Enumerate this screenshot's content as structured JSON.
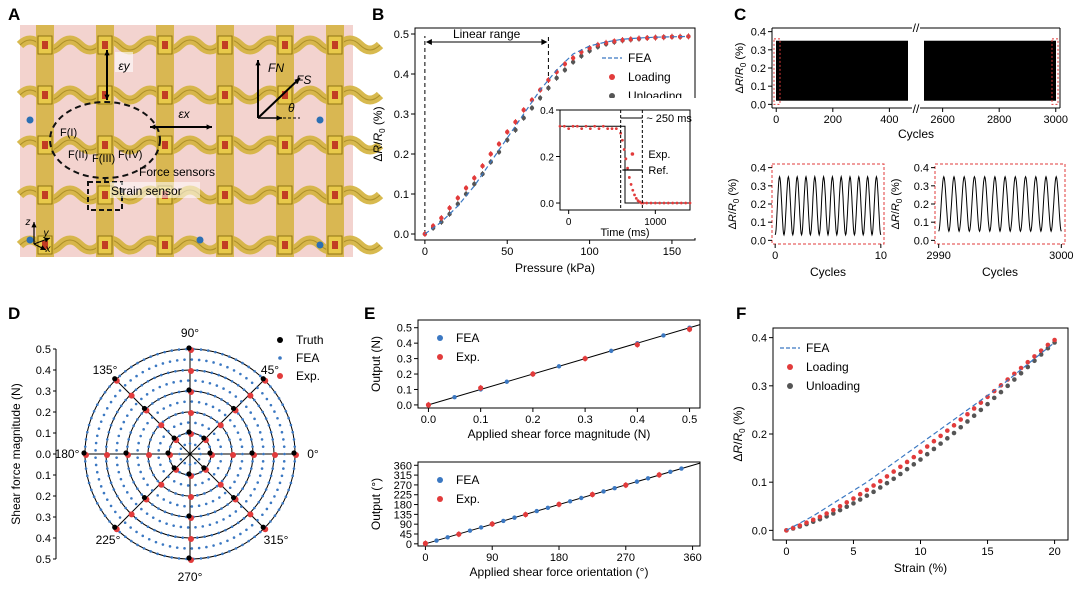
{
  "panel_letters": [
    "A",
    "B",
    "C",
    "D",
    "E",
    "F"
  ],
  "panel_a": {
    "labels": {
      "eps_y": "εy",
      "eps_x": "εx",
      "F_N": "FN",
      "F_S": "FS",
      "theta": "θ",
      "F_I": "F(I)",
      "F_II": "F(II)",
      "F_III": "F(III)",
      "F_IV": "F(IV)",
      "force_sensors": "Force sensors",
      "strain_sensor": "Strain sensor",
      "axis_z": "z",
      "axis_y": "y",
      "axis_x": "x"
    },
    "colors": {
      "bg": "#f3d3cf",
      "metal": "#d4b23c",
      "metal_dark": "#8f7412",
      "dot": "#2c6fb3"
    }
  },
  "chart_data": [
    {
      "id": "B",
      "type": "scatter",
      "xlabel": "Pressure (kPa)",
      "ylabel": "ΔR/R0 (%)",
      "xlim": [
        0,
        160
      ],
      "ylim": [
        0,
        0.5
      ],
      "xticks": [
        0,
        50,
        100,
        150
      ],
      "yticks": [
        0,
        0.1,
        0.2,
        0.3,
        0.4,
        0.5
      ],
      "annotation": "Linear range",
      "linear_range": [
        0,
        75
      ],
      "legend": [
        "FEA",
        "Loading",
        "Unloading"
      ],
      "series": [
        {
          "name": "FEA",
          "style": "dashed-line",
          "color": "#3b78c2",
          "x": [
            0,
            10,
            20,
            30,
            40,
            50,
            60,
            70,
            80,
            90,
            100,
            110,
            120,
            130,
            140,
            150,
            160
          ],
          "y": [
            0,
            0.03,
            0.07,
            0.12,
            0.18,
            0.24,
            0.3,
            0.36,
            0.41,
            0.45,
            0.47,
            0.48,
            0.487,
            0.49,
            0.492,
            0.493,
            0.494
          ]
        },
        {
          "name": "Loading",
          "style": "markers",
          "color": "#e23b3b",
          "x": [
            0,
            5,
            10,
            15,
            20,
            25,
            30,
            35,
            40,
            45,
            50,
            55,
            60,
            65,
            70,
            75,
            80,
            85,
            90,
            95,
            100,
            105,
            110,
            115,
            120,
            125,
            130,
            135,
            140,
            145,
            150,
            155,
            160
          ],
          "y": [
            0,
            0.02,
            0.04,
            0.065,
            0.09,
            0.115,
            0.14,
            0.17,
            0.2,
            0.225,
            0.255,
            0.28,
            0.31,
            0.335,
            0.36,
            0.385,
            0.405,
            0.425,
            0.44,
            0.455,
            0.465,
            0.473,
            0.478,
            0.482,
            0.485,
            0.487,
            0.489,
            0.49,
            0.491,
            0.492,
            0.493,
            0.493,
            0.494
          ]
        },
        {
          "name": "Unloading",
          "style": "markers",
          "color": "#555555",
          "x": [
            0,
            5,
            10,
            15,
            20,
            25,
            30,
            35,
            40,
            45,
            50,
            55,
            60,
            65,
            70,
            75,
            80,
            85,
            90,
            95,
            100,
            105,
            110,
            115,
            120,
            125,
            130,
            135,
            140,
            145,
            150,
            155,
            160
          ],
          "y": [
            0,
            0.015,
            0.03,
            0.05,
            0.075,
            0.1,
            0.125,
            0.15,
            0.18,
            0.205,
            0.235,
            0.26,
            0.29,
            0.315,
            0.34,
            0.365,
            0.39,
            0.41,
            0.43,
            0.445,
            0.458,
            0.468,
            0.475,
            0.48,
            0.484,
            0.486,
            0.488,
            0.49,
            0.491,
            0.492,
            0.493,
            0.493,
            0.494
          ]
        }
      ],
      "inset": {
        "xlabel": "Time (ms)",
        "xlim": [
          -100,
          1400
        ],
        "ylim": [
          -0.03,
          0.4
        ],
        "xticks": [
          0,
          1000
        ],
        "yticks": [
          0,
          0.2,
          0.4
        ],
        "annotation": "~ 250 ms",
        "legend": [
          "Exp.",
          "Ref."
        ],
        "ref": {
          "name": "Ref.",
          "x": [
            -100,
            650,
            650,
            1400
          ],
          "y": [
            0.33,
            0.33,
            0,
            0
          ]
        },
        "exp": {
          "name": "Exp.",
          "x": [
            -100,
            -50,
            0,
            50,
            100,
            150,
            200,
            250,
            300,
            350,
            400,
            450,
            500,
            550,
            600,
            620,
            640,
            660,
            680,
            700,
            720,
            740,
            760,
            780,
            800,
            820,
            840,
            860,
            900,
            950,
            1000,
            1050,
            1100,
            1150,
            1200,
            1250,
            1300,
            1350,
            1400
          ],
          "y": [
            0.33,
            0.33,
            0.32,
            0.33,
            0.33,
            0.32,
            0.33,
            0.32,
            0.33,
            0.32,
            0.33,
            0.32,
            0.32,
            0.32,
            0.3,
            0.27,
            0.23,
            0.19,
            0.15,
            0.11,
            0.08,
            0.055,
            0.035,
            0.02,
            0.01,
            0.005,
            0,
            0,
            0,
            0,
            0,
            0,
            0,
            0,
            0,
            0,
            0,
            0,
            0
          ]
        }
      }
    },
    {
      "id": "C",
      "type": "line",
      "xlabel": "Cycles",
      "ylabel": "ΔR/R0 (%)",
      "ylim": [
        0,
        0.4
      ],
      "yticks": [
        0,
        0.1,
        0.2,
        0.3,
        0.4
      ],
      "left_xticks": [
        0,
        200,
        400
      ],
      "left_range": [
        0,
        480
      ],
      "right_xticks": [
        2600,
        2800,
        3000
      ],
      "right_range": [
        2520,
        3000
      ],
      "signal_band": [
        0.02,
        0.35
      ],
      "subplots": [
        {
          "xlabel": "Cycles",
          "ylabel": "ΔR/R0 (%)",
          "xticks": [
            0,
            10
          ],
          "xlim": [
            0,
            10
          ],
          "yticks": [
            0,
            0.1,
            0.2,
            0.3,
            0.4
          ],
          "ylim": [
            0,
            0.4
          ],
          "cycles": 12,
          "range": [
            0.03,
            0.35
          ]
        },
        {
          "xlabel": "Cycles",
          "ylabel": "ΔR/R0 (%)",
          "xticks": [
            2990,
            3000
          ],
          "xlim": [
            2990,
            3000
          ],
          "yticks": [
            0,
            0.1,
            0.2,
            0.3,
            0.4
          ],
          "ylim": [
            0,
            0.4
          ],
          "cycles": 12,
          "range": [
            0.05,
            0.35
          ]
        }
      ]
    },
    {
      "id": "D",
      "type": "scatter",
      "ylabel": "Shear force magnitude (N)",
      "rlim": [
        0,
        0.5
      ],
      "rings": [
        0.1,
        0.2,
        0.3,
        0.4,
        0.5
      ],
      "rticks": [
        "0.5",
        "0.4",
        "0.3",
        "0.2",
        "0.1",
        "0.0",
        "0.1",
        "0.2",
        "0.3",
        "0.4",
        "0.5"
      ],
      "angle_labels": [
        "0°",
        "45°",
        "90°",
        "135°",
        "180°",
        "225°",
        "270°",
        "315°"
      ],
      "legend": [
        "Truth",
        "FEA",
        "Exp."
      ],
      "radii": [
        0.05,
        0.1,
        0.15,
        0.2,
        0.25,
        0.3,
        0.35,
        0.4,
        0.45,
        0.5
      ],
      "angles": [
        0,
        45,
        90,
        135,
        180,
        225,
        270,
        315
      ],
      "exp_radii": [
        0.1,
        0.2,
        0.3,
        0.4,
        0.5
      ],
      "truth_radii": [
        0.1,
        0.3,
        0.5
      ]
    },
    {
      "id": "E1",
      "type": "scatter",
      "xlabel": "Applied shear force magnitude (N)",
      "ylabel": "Output (N)",
      "xlim": [
        -0.02,
        0.52
      ],
      "ylim": [
        -0.02,
        0.55
      ],
      "xticks": [
        0,
        0.1,
        0.2,
        0.3,
        0.4,
        0.5
      ],
      "yticks": [
        0,
        0.1,
        0.2,
        0.3,
        0.4,
        0.5
      ],
      "legend": [
        "FEA",
        "Exp."
      ],
      "series": [
        {
          "name": "FEA",
          "color": "#3b78c2",
          "x": [
            0,
            0.05,
            0.1,
            0.15,
            0.2,
            0.25,
            0.3,
            0.35,
            0.4,
            0.45,
            0.5
          ],
          "y": [
            0,
            0.05,
            0.1,
            0.15,
            0.2,
            0.25,
            0.3,
            0.35,
            0.4,
            0.45,
            0.5
          ]
        },
        {
          "name": "Exp.",
          "color": "#e23b3b",
          "x": [
            0,
            0.1,
            0.2,
            0.3,
            0.4,
            0.5
          ],
          "y": [
            0,
            0.11,
            0.2,
            0.3,
            0.39,
            0.49
          ]
        }
      ]
    },
    {
      "id": "E2",
      "type": "scatter",
      "xlabel": "Applied shear force orientation (°)",
      "ylabel": "Output (°)",
      "xlim": [
        -10,
        370
      ],
      "ylim": [
        -10,
        375
      ],
      "xticks": [
        0,
        90,
        180,
        270,
        360
      ],
      "yticks": [
        0,
        45,
        90,
        135,
        180,
        225,
        270,
        315,
        360
      ],
      "legend": [
        "FEA",
        "Exp."
      ],
      "series": [
        {
          "name": "FEA",
          "color": "#3b78c2",
          "x": [
            0,
            15,
            30,
            45,
            60,
            75,
            90,
            105,
            120,
            135,
            150,
            165,
            180,
            195,
            210,
            225,
            240,
            255,
            270,
            285,
            300,
            315,
            330,
            345
          ],
          "y": [
            0,
            15,
            30,
            45,
            60,
            75,
            90,
            105,
            120,
            135,
            150,
            165,
            180,
            195,
            210,
            225,
            240,
            255,
            270,
            285,
            300,
            315,
            330,
            345
          ]
        },
        {
          "name": "Exp.",
          "color": "#e23b3b",
          "x": [
            0,
            45,
            90,
            135,
            180,
            225,
            270,
            315
          ],
          "y": [
            2,
            44,
            91,
            134,
            181,
            226,
            269,
            316
          ]
        }
      ]
    },
    {
      "id": "F",
      "type": "scatter",
      "xlabel": "Strain (%)",
      "ylabel": "ΔR/R0 (%)",
      "xlim": [
        -1,
        21
      ],
      "ylim": [
        -0.02,
        0.42
      ],
      "xticks": [
        0,
        5,
        10,
        15,
        20
      ],
      "yticks": [
        0,
        0.1,
        0.2,
        0.3,
        0.4
      ],
      "legend": [
        "FEA",
        "Loading",
        "Unloading"
      ],
      "series": [
        {
          "name": "FEA",
          "style": "dashed-line",
          "color": "#3b78c2",
          "x": [
            0,
            2,
            4,
            6,
            8,
            10,
            12,
            14,
            16,
            18,
            20
          ],
          "y": [
            0,
            0.03,
            0.065,
            0.1,
            0.14,
            0.18,
            0.22,
            0.26,
            0.3,
            0.345,
            0.39
          ]
        },
        {
          "name": "Loading",
          "style": "markers",
          "color": "#e23b3b",
          "x": [
            0,
            0.5,
            1,
            1.5,
            2,
            2.5,
            3,
            3.5,
            4,
            4.5,
            5,
            5.5,
            6,
            6.5,
            7,
            7.5,
            8,
            8.5,
            9,
            9.5,
            10,
            10.5,
            11,
            11.5,
            12,
            12.5,
            13,
            13.5,
            14,
            14.5,
            15,
            15.5,
            16,
            16.5,
            17,
            17.5,
            18,
            18.5,
            19,
            19.5,
            20
          ],
          "y": [
            0,
            0.005,
            0.01,
            0.016,
            0.022,
            0.028,
            0.035,
            0.042,
            0.05,
            0.058,
            0.066,
            0.075,
            0.084,
            0.093,
            0.102,
            0.112,
            0.122,
            0.132,
            0.142,
            0.152,
            0.163,
            0.174,
            0.185,
            0.196,
            0.207,
            0.218,
            0.23,
            0.241,
            0.253,
            0.265,
            0.277,
            0.289,
            0.301,
            0.313,
            0.325,
            0.337,
            0.349,
            0.361,
            0.373,
            0.385,
            0.395
          ]
        },
        {
          "name": "Unloading",
          "style": "markers",
          "color": "#555555",
          "x": [
            0,
            0.5,
            1,
            1.5,
            2,
            2.5,
            3,
            3.5,
            4,
            4.5,
            5,
            5.5,
            6,
            6.5,
            7,
            7.5,
            8,
            8.5,
            9,
            9.5,
            10,
            10.5,
            11,
            11.5,
            12,
            12.5,
            13,
            13.5,
            14,
            14.5,
            15,
            15.5,
            16,
            16.5,
            17,
            17.5,
            18,
            18.5,
            19,
            19.5,
            20
          ],
          "y": [
            0,
            0.004,
            0.008,
            0.013,
            0.018,
            0.023,
            0.029,
            0.035,
            0.042,
            0.049,
            0.056,
            0.064,
            0.072,
            0.08,
            0.089,
            0.098,
            0.107,
            0.117,
            0.127,
            0.137,
            0.147,
            0.158,
            0.169,
            0.18,
            0.191,
            0.202,
            0.214,
            0.226,
            0.238,
            0.25,
            0.262,
            0.275,
            0.287,
            0.3,
            0.313,
            0.326,
            0.339,
            0.352,
            0.365,
            0.378,
            0.39
          ]
        }
      ]
    }
  ]
}
